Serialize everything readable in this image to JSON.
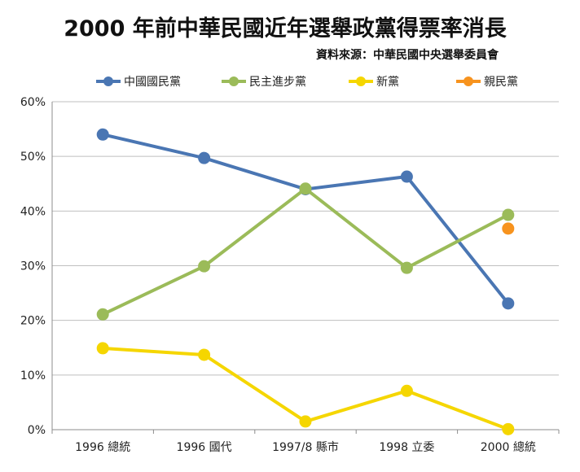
{
  "chart_data": {
    "type": "line",
    "title": "2000 年前中華民國近年選舉政黨得票率消長",
    "subtitle": "資料來源：中華民國中央選舉委員會",
    "xlabel": "",
    "ylabel": "",
    "categories": [
      "1996 總統",
      "1996 國代",
      "1997/8 縣市",
      "1998 立委",
      "2000 總統"
    ],
    "ylim": [
      0,
      60
    ],
    "yticks": [
      0,
      10,
      20,
      30,
      40,
      50,
      60
    ],
    "ytick_labels": [
      "0%",
      "10%",
      "20%",
      "30%",
      "40%",
      "50%",
      "60%"
    ],
    "grid": true,
    "legend_position": "top",
    "series": [
      {
        "name": "中國國民黨",
        "color": "#4a76b3",
        "values": [
          54.0,
          49.7,
          44.0,
          46.3,
          23.1
        ]
      },
      {
        "name": "民主進步黨",
        "color": "#9bbb59",
        "values": [
          21.1,
          29.9,
          44.1,
          29.6,
          39.3
        ]
      },
      {
        "name": "新黨",
        "color": "#f5d600",
        "values": [
          14.9,
          13.7,
          1.5,
          7.1,
          0.1
        ]
      },
      {
        "name": "親民黨",
        "color": "#f7931e",
        "values": [
          null,
          null,
          null,
          null,
          36.8
        ]
      }
    ]
  }
}
